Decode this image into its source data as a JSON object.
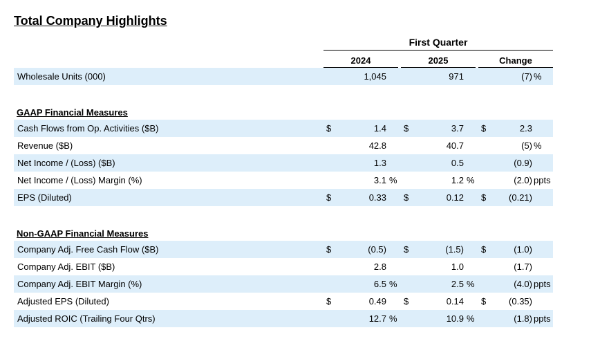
{
  "title": "Total Company Highlights",
  "period_header": "First Quarter",
  "columns": [
    "2024",
    "2025",
    "Change"
  ],
  "top_rows": [
    {
      "label": "Wholesale Units (000)",
      "c1": "1,045",
      "c2": "971",
      "c3": "(7)",
      "u3": "%",
      "shade": true
    }
  ],
  "gaap": {
    "heading": "GAAP Financial Measures",
    "rows": [
      {
        "label": "Cash Flows from Op. Activities ($B)",
        "s1": "$",
        "c1": "1.4",
        "s2": "$",
        "c2": "3.7",
        "s3": "$",
        "c3": "2.3",
        "shade": true
      },
      {
        "label": "Revenue ($B)",
        "c1": "42.8",
        "c2": "40.7",
        "c3": "(5)",
        "u3": "%",
        "shade": false
      },
      {
        "label": "Net Income / (Loss) ($B)",
        "c1": "1.3",
        "c2": "0.5",
        "c3": "(0.9)",
        "shade": true
      },
      {
        "label": "Net Income / (Loss) Margin (%)",
        "c1": "3.1",
        "u1": "%",
        "c2": "1.2",
        "u2": "%",
        "c3": "(2.0)",
        "u3": "ppts",
        "shade": false
      },
      {
        "label": "EPS (Diluted)",
        "s1": "$",
        "c1": "0.33",
        "s2": "$",
        "c2": "0.12",
        "s3": "$",
        "c3": "(0.21)",
        "shade": true
      }
    ]
  },
  "non_gaap": {
    "heading": "Non-GAAP Financial Measures",
    "rows": [
      {
        "label": "Company Adj. Free Cash Flow ($B)",
        "s1": "$",
        "c1": "(0.5)",
        "s2": "$",
        "c2": "(1.5)",
        "s3": "$",
        "c3": "(1.0)",
        "shade": true
      },
      {
        "label": "Company Adj. EBIT ($B)",
        "c1": "2.8",
        "c2": "1.0",
        "c3": "(1.7)",
        "shade": false
      },
      {
        "label": "Company Adj. EBIT Margin (%)",
        "c1": "6.5",
        "u1": "%",
        "c2": "2.5",
        "u2": "%",
        "c3": "(4.0)",
        "u3": "ppts",
        "shade": true
      },
      {
        "label": "Adjusted EPS (Diluted)",
        "s1": "$",
        "c1": "0.49",
        "s2": "$",
        "c2": "0.14",
        "s3": "$",
        "c3": "(0.35)",
        "shade": false
      },
      {
        "label": "Adjusted ROIC (Trailing Four Qtrs)",
        "c1": "12.7",
        "u1": "%",
        "c2": "10.9",
        "u2": "%",
        "c3": "(1.8)",
        "u3": "ppts",
        "shade": true
      }
    ]
  }
}
